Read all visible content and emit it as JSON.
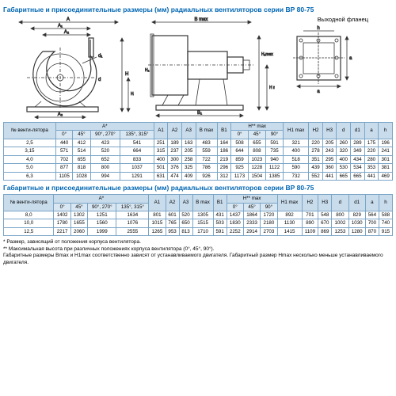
{
  "title1": "Габаритные и присоединительные размеры (мм) радиальных вентиляторов серии ВР 80-75",
  "title2": "Габаритные и присоединительные размеры (мм) радиальных вентиляторов серии ВР 80-75",
  "flange_label": "Выходной фланец",
  "headers": {
    "fan_no": "№ венти-лятора",
    "A_star": "A*",
    "H_star_max": "H** max",
    "deg0": "0°",
    "deg45": "45°",
    "deg90_270": "90°, 270°",
    "deg135_315": "135°, 315°",
    "deg90": "90°",
    "A1": "A1",
    "A2": "A2",
    "A3": "A3",
    "B_max": "B max",
    "B1": "B1",
    "H1_max": "H1 max",
    "H2": "H2",
    "H3": "H3",
    "d": "d",
    "d1": "d1",
    "a": "a",
    "h": "h"
  },
  "table1_rows": [
    [
      "2,5",
      "440",
      "412",
      "423",
      "541",
      "251",
      "189",
      "163",
      "483",
      "164",
      "508",
      "655",
      "591",
      "321",
      "220",
      "205",
      "260",
      "289",
      "175",
      "196"
    ],
    [
      "3,15",
      "571",
      "514",
      "520",
      "664",
      "315",
      "237",
      "205",
      "559",
      "186",
      "644",
      "808",
      "735",
      "400",
      "278",
      "243",
      "320",
      "349",
      "220",
      "241"
    ],
    [
      "4,0",
      "702",
      "655",
      "652",
      "833",
      "400",
      "300",
      "258",
      "722",
      "219",
      "859",
      "1023",
      "940",
      "518",
      "351",
      "295",
      "400",
      "434",
      "280",
      "301"
    ],
    [
      "5,0",
      "877",
      "818",
      "800",
      "1037",
      "501",
      "376",
      "325",
      "786",
      "296",
      "925",
      "1228",
      "1122",
      "590",
      "439",
      "360",
      "530",
      "534",
      "353",
      "381"
    ],
    [
      "6,3",
      "1105",
      "1028",
      "994",
      "1291",
      "631",
      "474",
      "409",
      "926",
      "312",
      "1173",
      "1504",
      "1385",
      "732",
      "552",
      "441",
      "665",
      "665",
      "441",
      "469"
    ]
  ],
  "table2_rows": [
    [
      "8,0",
      "1402",
      "1302",
      "1251",
      "1634",
      "801",
      "601",
      "520",
      "1305",
      "431",
      "1437",
      "1864",
      "1720",
      "892",
      "701",
      "548",
      "800",
      "829",
      "564",
      "588"
    ],
    [
      "10,0",
      "1780",
      "1655",
      "1560",
      "1076",
      "1015",
      "765",
      "650",
      "1515",
      "503",
      "1830",
      "2333",
      "2180",
      "1130",
      "890",
      "670",
      "1002",
      "1030",
      "700",
      "740"
    ],
    [
      "12,5",
      "2217",
      "2060",
      "1999",
      "2555",
      "1265",
      "953",
      "813",
      "1710",
      "591",
      "2252",
      "2914",
      "2703",
      "1415",
      "1109",
      "869",
      "1253",
      "1280",
      "870",
      "915"
    ]
  ],
  "notes": {
    "n1": "* Размер, зависящий от положения корпуса вентилятора.",
    "n2": "** Максимальная высота при различных положениях корпуса вентилятора (0°, 45°, 90°).",
    "n3": "Габаритные размеры Bmax и H1max соответственно зависят от устанавливаемого двигателя. Габаритный размер Hmax несколько меньше устанавливаемого двигателя."
  },
  "colors": {
    "line": "#333",
    "blue": "#0066b3",
    "header_bg": "#c9dcec"
  }
}
